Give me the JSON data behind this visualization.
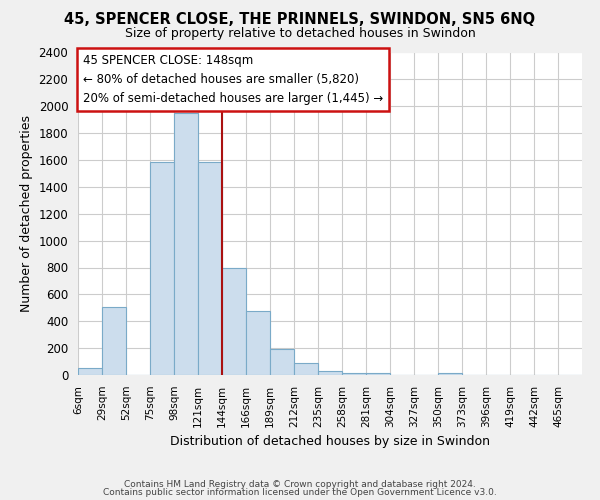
{
  "title": "45, SPENCER CLOSE, THE PRINNELS, SWINDON, SN5 6NQ",
  "subtitle": "Size of property relative to detached houses in Swindon",
  "xlabel": "Distribution of detached houses by size in Swindon",
  "ylabel": "Number of detached properties",
  "bar_color": "#ccdded",
  "bar_edge_color": "#7aaac8",
  "categories": [
    "6sqm",
    "29sqm",
    "52sqm",
    "75sqm",
    "98sqm",
    "121sqm",
    "144sqm",
    "166sqm",
    "189sqm",
    "212sqm",
    "235sqm",
    "258sqm",
    "281sqm",
    "304sqm",
    "327sqm",
    "350sqm",
    "373sqm",
    "396sqm",
    "419sqm",
    "442sqm",
    "465sqm"
  ],
  "values": [
    55,
    505,
    0,
    1585,
    1950,
    1585,
    800,
    475,
    195,
    90,
    30,
    15,
    15,
    0,
    0,
    15,
    0,
    0,
    0,
    0,
    0
  ],
  "ylim": [
    0,
    2400
  ],
  "yticks": [
    0,
    200,
    400,
    600,
    800,
    1000,
    1200,
    1400,
    1600,
    1800,
    2000,
    2200,
    2400
  ],
  "vline_x_idx": 6,
  "vline_color": "#aa1111",
  "annotation_title": "45 SPENCER CLOSE: 148sqm",
  "annotation_line1": "← 80% of detached houses are smaller (5,820)",
  "annotation_line2": "20% of semi-detached houses are larger (1,445) →",
  "footnote1": "Contains HM Land Registry data © Crown copyright and database right 2024.",
  "footnote2": "Contains public sector information licensed under the Open Government Licence v3.0.",
  "bg_color": "#f0f0f0",
  "plot_bg_color": "#ffffff",
  "grid_color": "#cccccc"
}
